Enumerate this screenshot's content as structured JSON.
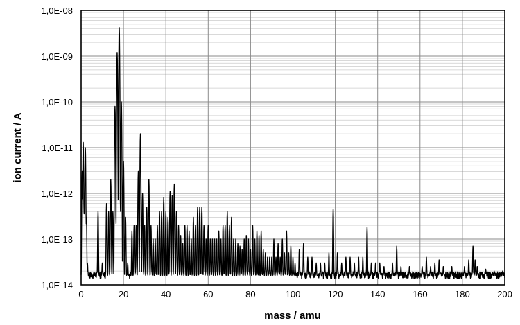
{
  "chart_data": {
    "type": "line",
    "title": "",
    "xlabel": "mass / amu",
    "ylabel": "ion current / A",
    "xlim": [
      0,
      200
    ],
    "ylim": [
      1e-14,
      1e-08
    ],
    "yscale": "log",
    "grid": true,
    "legend": "none",
    "x_ticks": [
      0,
      20,
      40,
      60,
      80,
      100,
      120,
      140,
      160,
      180,
      200
    ],
    "x_tick_labels": [
      "0",
      "20",
      "40",
      "60",
      "80",
      "100",
      "120",
      "140",
      "160",
      "180",
      "200"
    ],
    "y_ticks": [
      1e-14,
      1e-13,
      1e-12,
      1e-11,
      1e-10,
      1e-09,
      1e-08
    ],
    "y_tick_labels": [
      "1,0E-14",
      "1,0E-13",
      "1,0E-12",
      "1,0E-11",
      "1,0E-10",
      "1,0E-09",
      "1,0E-08"
    ],
    "line_color": "#000000",
    "baseline": 1.6e-14,
    "peaks": [
      [
        0.5,
        3e-12
      ],
      [
        1.0,
        1.3e-11
      ],
      [
        1.5,
        5e-13
      ],
      [
        2.0,
        1e-11
      ],
      [
        2.5,
        3e-13
      ],
      [
        3.0,
        3e-14
      ],
      [
        8.0,
        4e-13
      ],
      [
        10.0,
        3e-14
      ],
      [
        12.0,
        6e-13
      ],
      [
        13.0,
        4e-13
      ],
      [
        14.0,
        2e-12
      ],
      [
        15.0,
        4e-13
      ],
      [
        16.0,
        8e-11
      ],
      [
        17.0,
        1.2e-09
      ],
      [
        18.0,
        4.2e-09
      ],
      [
        19.0,
        1e-10
      ],
      [
        20.0,
        5e-12
      ],
      [
        21.0,
        3e-13
      ],
      [
        22.0,
        3e-14
      ],
      [
        24.0,
        1.5e-13
      ],
      [
        25.0,
        2e-13
      ],
      [
        26.0,
        2e-13
      ],
      [
        27.0,
        3e-12
      ],
      [
        28.0,
        2e-11
      ],
      [
        29.0,
        1e-12
      ],
      [
        30.0,
        2e-13
      ],
      [
        31.0,
        5e-13
      ],
      [
        32.0,
        2e-12
      ],
      [
        33.0,
        2e-13
      ],
      [
        34.0,
        1e-13
      ],
      [
        35.0,
        1e-13
      ],
      [
        36.0,
        2e-13
      ],
      [
        37.0,
        4e-13
      ],
      [
        38.0,
        4e-13
      ],
      [
        39.0,
        8e-13
      ],
      [
        40.0,
        4e-13
      ],
      [
        41.0,
        3e-13
      ],
      [
        42.0,
        1.1e-12
      ],
      [
        43.0,
        9e-13
      ],
      [
        44.0,
        1.6e-12
      ],
      [
        45.0,
        4e-13
      ],
      [
        46.0,
        2e-13
      ],
      [
        47.0,
        1.2e-13
      ],
      [
        48.0,
        8e-14
      ],
      [
        49.0,
        2e-13
      ],
      [
        50.0,
        2e-13
      ],
      [
        51.0,
        1.5e-13
      ],
      [
        52.0,
        1e-13
      ],
      [
        53.0,
        3e-13
      ],
      [
        54.0,
        2e-13
      ],
      [
        55.0,
        5e-13
      ],
      [
        56.0,
        5e-13
      ],
      [
        57.0,
        5e-13
      ],
      [
        58.0,
        2e-13
      ],
      [
        59.0,
        1e-13
      ],
      [
        60.0,
        2e-13
      ],
      [
        61.0,
        1e-13
      ],
      [
        62.0,
        1e-13
      ],
      [
        63.0,
        1e-13
      ],
      [
        64.0,
        1e-13
      ],
      [
        65.0,
        1.5e-13
      ],
      [
        66.0,
        1e-13
      ],
      [
        67.0,
        2e-13
      ],
      [
        68.0,
        2e-13
      ],
      [
        69.0,
        4e-13
      ],
      [
        70.0,
        2e-13
      ],
      [
        71.0,
        3e-13
      ],
      [
        72.0,
        1e-13
      ],
      [
        73.0,
        1e-13
      ],
      [
        74.0,
        8e-14
      ],
      [
        75.0,
        7e-14
      ],
      [
        76.0,
        6e-14
      ],
      [
        77.0,
        1e-13
      ],
      [
        78.0,
        1.2e-13
      ],
      [
        79.0,
        1e-13
      ],
      [
        80.0,
        6e-14
      ],
      [
        81.0,
        2e-13
      ],
      [
        82.0,
        1e-13
      ],
      [
        83.0,
        1.5e-13
      ],
      [
        84.0,
        1.2e-13
      ],
      [
        85.0,
        1.5e-13
      ],
      [
        86.0,
        6e-14
      ],
      [
        87.0,
        5e-14
      ],
      [
        88.0,
        4e-14
      ],
      [
        89.0,
        4e-14
      ],
      [
        90.0,
        4e-14
      ],
      [
        91.0,
        1e-13
      ],
      [
        92.0,
        4e-14
      ],
      [
        93.0,
        8e-14
      ],
      [
        94.0,
        4e-14
      ],
      [
        95.0,
        1e-13
      ],
      [
        96.0,
        5e-14
      ],
      [
        97.0,
        1.5e-13
      ],
      [
        98.0,
        5e-14
      ],
      [
        99.0,
        7e-14
      ],
      [
        100.0,
        4e-14
      ],
      [
        101.0,
        3e-14
      ],
      [
        103.0,
        6e-14
      ],
      [
        105.0,
        8e-14
      ],
      [
        107.0,
        4e-14
      ],
      [
        109.0,
        4e-14
      ],
      [
        111.0,
        3e-14
      ],
      [
        113.0,
        3e-14
      ],
      [
        115.0,
        3e-14
      ],
      [
        117.0,
        5e-14
      ],
      [
        119.0,
        4.5e-13
      ],
      [
        121.0,
        5e-14
      ],
      [
        123.0,
        3e-14
      ],
      [
        125.0,
        4e-14
      ],
      [
        127.0,
        4e-14
      ],
      [
        129.0,
        3e-14
      ],
      [
        131.0,
        4e-14
      ],
      [
        133.0,
        4e-14
      ],
      [
        135.0,
        1.8e-13
      ],
      [
        137.0,
        3e-14
      ],
      [
        139.0,
        3e-14
      ],
      [
        141.0,
        3e-14
      ],
      [
        143.0,
        2.5e-14
      ],
      [
        147.0,
        3e-14
      ],
      [
        149.0,
        7e-14
      ],
      [
        151.0,
        2.5e-14
      ],
      [
        155.0,
        2.5e-14
      ],
      [
        161.0,
        2.5e-14
      ],
      [
        163.0,
        4e-14
      ],
      [
        165.0,
        2.5e-14
      ],
      [
        167.0,
        3e-14
      ],
      [
        169.0,
        3.5e-14
      ],
      [
        171.0,
        2.5e-14
      ],
      [
        175.0,
        2.5e-14
      ],
      [
        181.0,
        2.5e-14
      ],
      [
        183.0,
        3.5e-14
      ],
      [
        185.0,
        7e-14
      ],
      [
        186.0,
        3.5e-14
      ],
      [
        187.0,
        2.5e-14
      ],
      [
        191.0,
        2.2e-14
      ],
      [
        195.0,
        2e-14
      ],
      [
        199.0,
        2e-14
      ]
    ]
  }
}
